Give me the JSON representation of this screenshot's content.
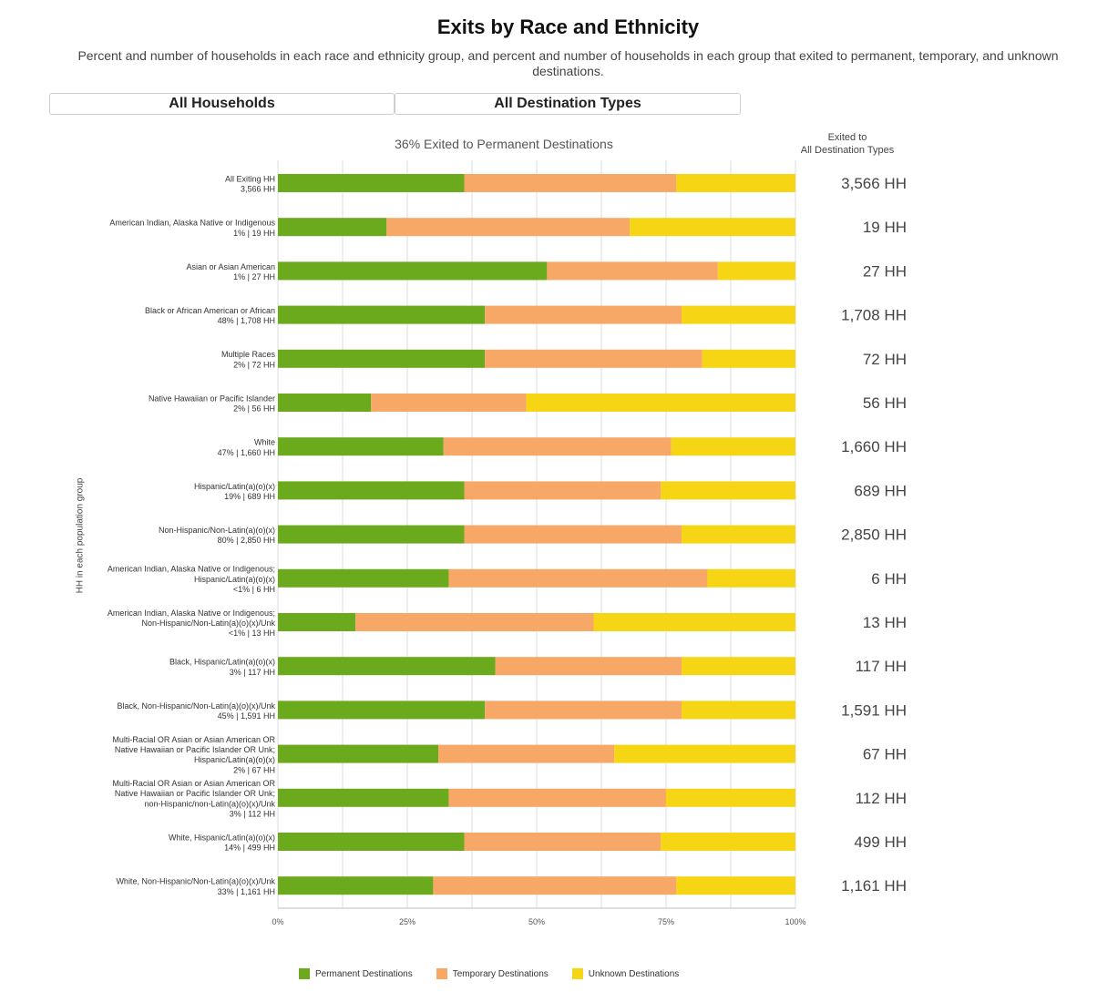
{
  "title": "Exits by Race and Ethnicity",
  "subtitle": "Percent and number of households in each race and ethnicity group, and percent and number of households in each group that exited to permanent, temporary, and unknown destinations.",
  "filters": {
    "households": "All Households",
    "destinations": "All Destination Types"
  },
  "chart_title": "36% Exited to Permanent Destinations",
  "column_header": [
    "Exited to",
    "All Destination Types"
  ],
  "y_axis_label": "HH in each population group",
  "colors": {
    "permanent": "#6aaa1c",
    "temporary": "#f7a766",
    "unknown": "#f6d614"
  },
  "chart_data": {
    "type": "bar",
    "orientation": "horizontal",
    "stacked": "percent",
    "xlim": [
      0,
      100
    ],
    "x_ticks": [
      "0%",
      "25%",
      "50%",
      "75%",
      "100%"
    ],
    "series_names": [
      "Permanent Destinations",
      "Temporary Destinations",
      "Unknown Destinations"
    ],
    "rows": [
      {
        "label": [
          "All Exiting HH",
          "3,566 HH"
        ],
        "permanent": 36,
        "temporary": 41,
        "unknown": 23,
        "total": "3,566 HH"
      },
      {
        "label": [
          "American Indian, Alaska Native or Indigenous",
          "1% | 19 HH"
        ],
        "permanent": 21,
        "temporary": 47,
        "unknown": 32,
        "total": "19 HH"
      },
      {
        "label": [
          "Asian or Asian American",
          "1% | 27 HH"
        ],
        "permanent": 52,
        "temporary": 33,
        "unknown": 15,
        "total": "27 HH"
      },
      {
        "label": [
          "Black or African American or African",
          "48% | 1,708 HH"
        ],
        "permanent": 40,
        "temporary": 38,
        "unknown": 22,
        "total": "1,708 HH"
      },
      {
        "label": [
          "Multiple Races",
          "2% | 72 HH"
        ],
        "permanent": 40,
        "temporary": 42,
        "unknown": 18,
        "total": "72 HH"
      },
      {
        "label": [
          "Native Hawaiian or Pacific Islander",
          "2% | 56 HH"
        ],
        "permanent": 18,
        "temporary": 30,
        "unknown": 52,
        "total": "56 HH"
      },
      {
        "label": [
          "White",
          "47% | 1,660 HH"
        ],
        "permanent": 32,
        "temporary": 44,
        "unknown": 24,
        "total": "1,660 HH"
      },
      {
        "label": [
          "Hispanic/Latin(a)(o)(x)",
          "19% | 689 HH"
        ],
        "permanent": 36,
        "temporary": 38,
        "unknown": 26,
        "total": "689 HH"
      },
      {
        "label": [
          "Non-Hispanic/Non-Latin(a)(o)(x)",
          "80% | 2,850 HH"
        ],
        "permanent": 36,
        "temporary": 42,
        "unknown": 22,
        "total": "2,850 HH"
      },
      {
        "label": [
          "American Indian, Alaska Native or Indigenous;",
          "Hispanic/Latin(a)(o)(x)",
          "<1% | 6 HH"
        ],
        "permanent": 33,
        "temporary": 50,
        "unknown": 17,
        "total": "6 HH"
      },
      {
        "label": [
          "American Indian, Alaska Native or Indigenous;",
          "Non-Hispanic/Non-Latin(a)(o)(x)/Unk",
          "<1% | 13 HH"
        ],
        "permanent": 15,
        "temporary": 46,
        "unknown": 39,
        "total": "13 HH"
      },
      {
        "label": [
          "Black, Hispanic/Latin(a)(o)(x)",
          "3% | 117 HH"
        ],
        "permanent": 42,
        "temporary": 36,
        "unknown": 22,
        "total": "117 HH"
      },
      {
        "label": [
          "Black, Non-Hispanic/Non-Latin(a)(o)(x)/Unk",
          "45% | 1,591 HH"
        ],
        "permanent": 40,
        "temporary": 38,
        "unknown": 22,
        "total": "1,591 HH"
      },
      {
        "label": [
          "Multi-Racial OR Asian or Asian American OR",
          "Native Hawaiian or Pacific Islander OR Unk;",
          "Hispanic/Latin(a)(o)(x)",
          "2% | 67 HH"
        ],
        "permanent": 31,
        "temporary": 34,
        "unknown": 35,
        "total": "67 HH"
      },
      {
        "label": [
          "Multi-Racial OR Asian or Asian American OR",
          "Native Hawaiian or Pacific Islander OR Unk;",
          "non-Hispanic/non-Latin(a)(o)(x)/Unk",
          "3% | 112 HH"
        ],
        "permanent": 33,
        "temporary": 42,
        "unknown": 25,
        "total": "112 HH"
      },
      {
        "label": [
          "White, Hispanic/Latin(a)(o)(x)",
          "14% | 499 HH"
        ],
        "permanent": 36,
        "temporary": 38,
        "unknown": 26,
        "total": "499 HH"
      },
      {
        "label": [
          "White, Non-Hispanic/Non-Latin(a)(o)(x)/Unk",
          "33% | 1,161 HH"
        ],
        "permanent": 30,
        "temporary": 47,
        "unknown": 23,
        "total": "1,161 HH"
      }
    ]
  }
}
